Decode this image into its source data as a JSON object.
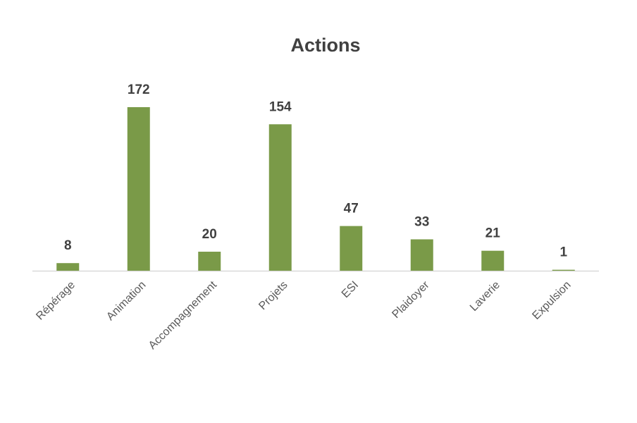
{
  "chart_data": {
    "type": "bar",
    "title": "Actions",
    "categories": [
      "Répérage",
      "Animation",
      "Accompagnement",
      "Projets",
      "ESI",
      "Plaidoyer",
      "Laverie",
      "Expulsion"
    ],
    "values": [
      8,
      172,
      20,
      154,
      47,
      33,
      21,
      1
    ],
    "color": "#7a9a48"
  }
}
